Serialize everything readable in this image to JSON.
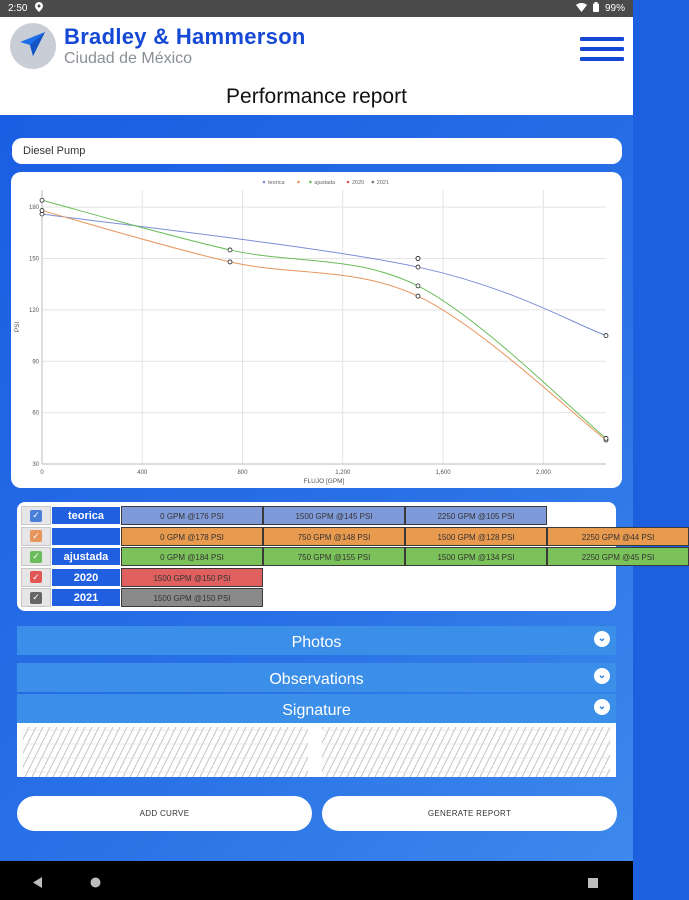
{
  "status_bar": {
    "time": "2:50",
    "battery": "99%"
  },
  "header": {
    "company": "Bradley & Hammerson",
    "city": "Ciudad de México",
    "page_title": "Performance report"
  },
  "pump_field": {
    "value": "Diesel Pump"
  },
  "chart_data": {
    "type": "line",
    "xlabel": "FLUJO [GPM]",
    "ylabel": "PSI",
    "xlim": [
      0,
      2250
    ],
    "ylim": [
      30,
      190
    ],
    "x_ticks": [
      "0",
      "400",
      "800",
      "1,200",
      "1,600",
      "2,000"
    ],
    "y_ticks": [
      "30",
      "60",
      "90",
      "120",
      "150",
      "180"
    ],
    "grid": true,
    "legend_position": "top-center",
    "series": [
      {
        "name": "teorica",
        "color": "#7a8fd6",
        "x": [
          0,
          1500,
          2250
        ],
        "y": [
          176,
          145,
          105
        ]
      },
      {
        "name": "",
        "color": "#e8955c",
        "x": [
          0,
          750,
          1500,
          2250
        ],
        "y": [
          178,
          148,
          128,
          44
        ]
      },
      {
        "name": "ajustada",
        "color": "#6bbd5b",
        "x": [
          0,
          750,
          1500,
          2250
        ],
        "y": [
          184,
          155,
          134,
          45
        ]
      },
      {
        "name": "2020",
        "color": "#e25555",
        "x": [
          1500
        ],
        "y": [
          150
        ]
      },
      {
        "name": "2021",
        "color": "#777777",
        "x": [
          1500
        ],
        "y": [
          150
        ]
      }
    ]
  },
  "curves_table": [
    {
      "name": "teorica",
      "check_color": "#4a7fd8",
      "cell_color": "#7f9ad8",
      "points": [
        "0 GPM @176 PSI",
        "1500 GPM @145 PSI",
        "2250 GPM @105 PSI"
      ]
    },
    {
      "name": "",
      "check_color": "#e8955c",
      "cell_color": "#e89a4f",
      "points": [
        "0 GPM @178 PSI",
        "750 GPM @148 PSI",
        "1500 GPM @128 PSI",
        "2250 GPM @44 PSI"
      ]
    },
    {
      "name": "ajustada",
      "check_color": "#6bbd5b",
      "cell_color": "#7cc25a",
      "points": [
        "0 GPM @184 PSI",
        "750 GPM @155 PSI",
        "1500 GPM @134 PSI",
        "2250 GPM @45 PSI"
      ]
    },
    {
      "name": "2020",
      "check_color": "#e25555",
      "cell_color": "#e06060",
      "points": [
        "1500 GPM @150 PSI"
      ]
    },
    {
      "name": "2021",
      "check_color": "#666666",
      "cell_color": "#8a8a8a",
      "points": [
        "1500 GPM @150 PSI"
      ]
    }
  ],
  "sections": {
    "photos": "Photos",
    "observations": "Observations",
    "signature": "Signature"
  },
  "buttons": {
    "add_curve": "ADD CURVE",
    "generate_report": "GENERATE REPORT"
  },
  "colors": {
    "brand_blue": "#1548d4",
    "background_blue": "#1e5fe0",
    "section_blue": "#3b8fe8"
  }
}
